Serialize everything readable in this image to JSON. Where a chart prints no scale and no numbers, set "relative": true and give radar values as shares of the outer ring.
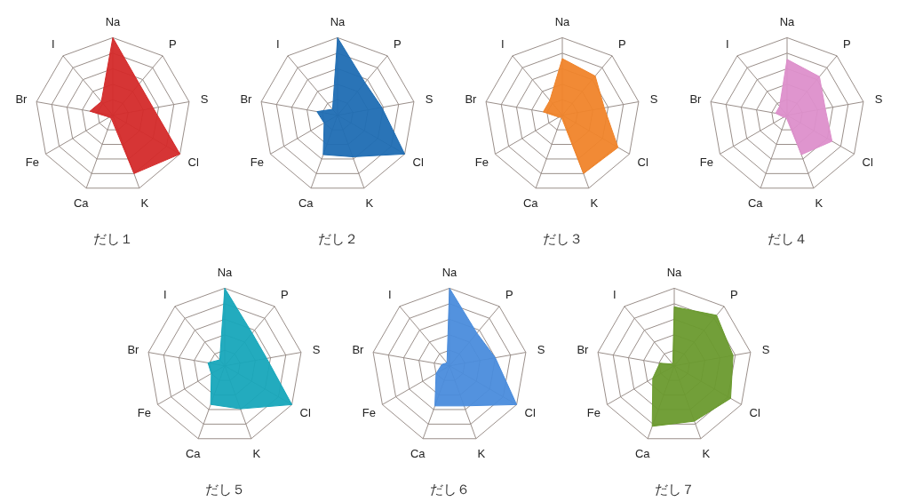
{
  "chart_data": [
    {
      "type": "radar",
      "title": "だし１",
      "categories": [
        "Na",
        "P",
        "S",
        "Cl",
        "K",
        "Ca",
        "Fe",
        "Br",
        "I"
      ],
      "relative": true,
      "grid": true,
      "series": [
        {
          "color": "#d42a2a",
          "values": [
            1.0,
            0.53,
            0.53,
            1.0,
            0.8,
            0.05,
            0.05,
            0.3,
            0.23
          ]
        }
      ]
    },
    {
      "type": "radar",
      "title": "だし２",
      "categories": [
        "Na",
        "P",
        "S",
        "Cl",
        "K",
        "Ca",
        "Fe",
        "Br",
        "I"
      ],
      "relative": true,
      "grid": true,
      "series": [
        {
          "color": "#1f6db3",
          "values": [
            1.0,
            0.55,
            0.58,
            1.0,
            0.57,
            0.54,
            0.2,
            0.27,
            0.1
          ]
        }
      ]
    },
    {
      "type": "radar",
      "title": "だし３",
      "categories": [
        "Na",
        "P",
        "S",
        "Cl",
        "K",
        "Ca",
        "Fe",
        "Br",
        "I"
      ],
      "relative": true,
      "grid": true,
      "series": [
        {
          "color": "#f0842a",
          "values": [
            0.73,
            0.66,
            0.55,
            0.83,
            0.8,
            0.03,
            0.05,
            0.25,
            0.25
          ]
        }
      ]
    },
    {
      "type": "radar",
      "title": "だし４",
      "categories": [
        "Na",
        "P",
        "S",
        "Cl",
        "K",
        "Ca",
        "Fe",
        "Br",
        "I"
      ],
      "relative": true,
      "grid": true,
      "series": [
        {
          "color": "#dd8fcb",
          "values": [
            0.72,
            0.65,
            0.5,
            0.67,
            0.54,
            0.03,
            0.05,
            0.15,
            0.15
          ]
        }
      ]
    },
    {
      "type": "radar",
      "title": "だし５",
      "categories": [
        "Na",
        "P",
        "S",
        "Cl",
        "K",
        "Ca",
        "Fe",
        "Br",
        "I"
      ],
      "relative": true,
      "grid": true,
      "series": [
        {
          "color": "#17a6ba",
          "values": [
            1.0,
            0.55,
            0.55,
            1.0,
            0.59,
            0.53,
            0.2,
            0.22,
            0.1
          ]
        }
      ]
    },
    {
      "type": "radar",
      "title": "だし６",
      "categories": [
        "Na",
        "P",
        "S",
        "Cl",
        "K",
        "Ca",
        "Fe",
        "Br",
        "I"
      ],
      "relative": true,
      "grid": true,
      "series": [
        {
          "color": "#4a8cdc",
          "values": [
            1.0,
            0.55,
            0.6,
            1.0,
            0.55,
            0.55,
            0.2,
            0.1,
            0.05
          ]
        }
      ]
    },
    {
      "type": "radar",
      "title": "だし７",
      "categories": [
        "Na",
        "P",
        "S",
        "Cl",
        "K",
        "Ca",
        "Fe",
        "Br",
        "I"
      ],
      "relative": true,
      "grid": true,
      "series": [
        {
          "color": "#6a9a2e",
          "values": [
            0.76,
            0.85,
            0.77,
            0.84,
            0.76,
            0.83,
            0.32,
            0.19,
            0.03
          ]
        }
      ]
    }
  ]
}
